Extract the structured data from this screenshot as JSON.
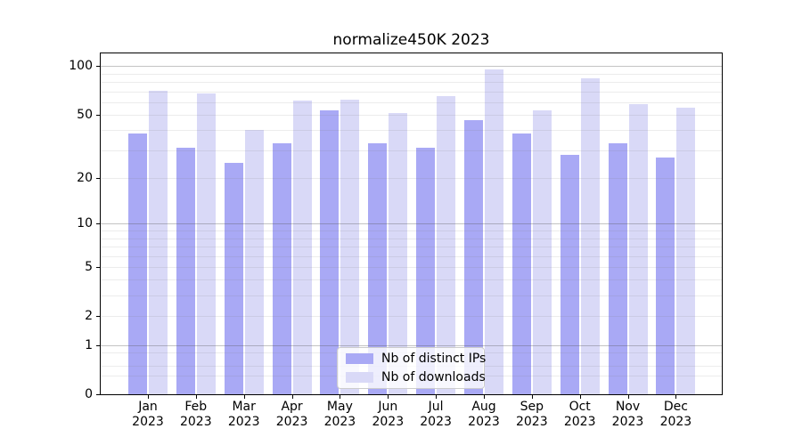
{
  "chart_data": {
    "type": "bar",
    "title": "normalize450K 2023",
    "categories": [
      "Jan 2023",
      "Feb 2023",
      "Mar 2023",
      "Apr 2023",
      "May 2023",
      "Jun 2023",
      "Jul 2023",
      "Aug 2023",
      "Sep 2023",
      "Oct 2023",
      "Nov 2023",
      "Dec 2023"
    ],
    "series": [
      {
        "name": "Nb of distinct IPs",
        "color": "#a9a9f5",
        "values": [
          38,
          31,
          25,
          33,
          53,
          33,
          31,
          46,
          38,
          28,
          33,
          27
        ]
      },
      {
        "name": "Nb of downloads",
        "color": "#d9d9f7",
        "values": [
          70,
          68,
          40,
          61,
          62,
          51,
          65,
          95,
          53,
          84,
          58,
          55
        ]
      }
    ],
    "xlabel": "",
    "ylabel": "",
    "yscale": "log1p",
    "ylim": [
      0,
      119
    ],
    "yticks": [
      100,
      50,
      20,
      10,
      5,
      2,
      1,
      0
    ],
    "grid": {
      "on": true,
      "major": [
        1,
        10,
        100
      ],
      "minor": [
        0.3,
        0.5,
        0.8,
        2,
        3,
        4,
        5,
        6,
        7,
        8,
        9,
        20,
        30,
        40,
        50,
        60,
        70,
        80,
        90
      ]
    },
    "legend": {
      "position": "lower-center"
    }
  }
}
